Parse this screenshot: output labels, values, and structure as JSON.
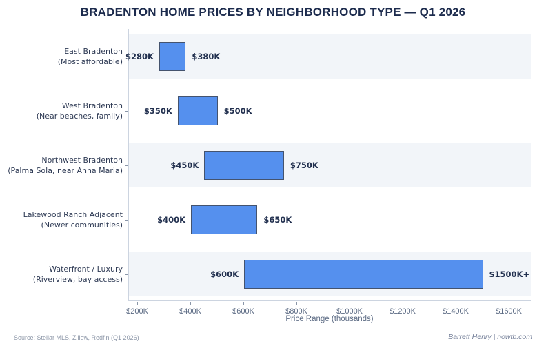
{
  "title": "BRADENTON HOME PRICES BY NEIGHBORHOOD TYPE — Q1 2026",
  "footer": {
    "source": "Source: Stellar MLS, Zillow, Redfin (Q1 2026)",
    "credit": "Barrett Henry | nowtb.com"
  },
  "colors": {
    "bar_fill": "#5590ee",
    "bar_border": "#44536e",
    "row_band": "#f2f5f9",
    "axis_line": "#ccd4e0",
    "tick_mark": "#8a96a8",
    "tick_label": "#5c6b84",
    "title_text": "#1c2b4d",
    "category_text": "#2f3b55",
    "value_text": "#22304f"
  },
  "chart_data": {
    "type": "bar",
    "subtype": "horizontal-range-bars",
    "title": "BRADENTON HOME PRICES BY NEIGHBORHOOD TYPE — Q1 2026",
    "xlabel": "Price Range (thousands)",
    "units": "$K (thousands of dollars)",
    "xlim": [
      166,
      1683
    ],
    "grid": false,
    "legend": false,
    "row_shading": "alternating, shaded rows 1, 3, 5",
    "categories": [
      {
        "name": "East Bradenton",
        "sub": "(Most affordable)",
        "min": 280,
        "max": 380,
        "min_label": "$280K",
        "max_label": "$380K"
      },
      {
        "name": "West Bradenton",
        "sub": "(Near beaches, family)",
        "min": 350,
        "max": 500,
        "min_label": "$350K",
        "max_label": "$500K"
      },
      {
        "name": "Northwest Bradenton",
        "sub": "(Palma Sola, near Anna Maria)",
        "min": 450,
        "max": 750,
        "min_label": "$450K",
        "max_label": "$750K"
      },
      {
        "name": "Lakewood Ranch Adjacent",
        "sub": "(Newer communities)",
        "min": 400,
        "max": 650,
        "min_label": "$400K",
        "max_label": "$650K"
      },
      {
        "name": "Waterfront / Luxury",
        "sub": "(Riverview, bay access)",
        "min": 600,
        "max": 1500,
        "min_label": "$600K",
        "max_label": "$1500K+"
      }
    ],
    "xticks": [
      {
        "value": 200,
        "label": "$200K"
      },
      {
        "value": 400,
        "label": "$400K"
      },
      {
        "value": 600,
        "label": "$600K"
      },
      {
        "value": 800,
        "label": "$800K"
      },
      {
        "value": 1000,
        "label": "$1000K"
      },
      {
        "value": 1200,
        "label": "$1200K"
      },
      {
        "value": 1400,
        "label": "$1400K"
      },
      {
        "value": 1600,
        "label": "$1600K"
      }
    ]
  }
}
